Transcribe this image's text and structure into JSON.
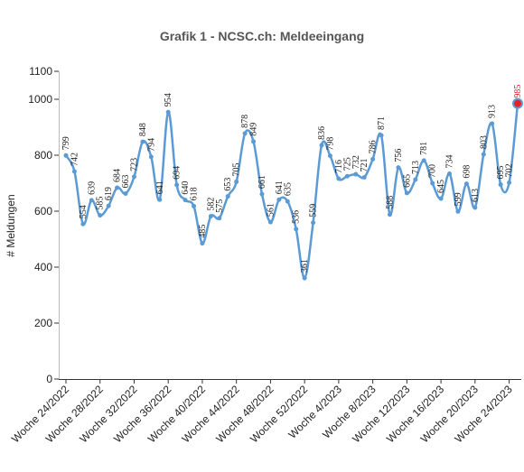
{
  "chart_data": {
    "type": "line",
    "title": "Grafik 1 - NCSC.ch: Meldeeingang",
    "ylabel": "# Meldungen",
    "xlabel": "",
    "ylim": [
      0,
      1100
    ],
    "yticks": [
      0,
      200,
      400,
      600,
      800,
      1000,
      1100
    ],
    "grid": false,
    "line_color": "#5b9bd5",
    "highlight_color": "#e8202a",
    "x_tick_labels": [
      "Woche 24/2022",
      "Woche 28/2022",
      "Woche 32/2022",
      "Woche 36/2022",
      "Woche 40/2022",
      "Woche 44/2022",
      "Woche 48/2022",
      "Woche 52/2022",
      "Woche 4/2023",
      "Woche 8/2023",
      "Woche 12/2023",
      "Woche 16/2023",
      "Woche 20/2023",
      "Woche 24/2023"
    ],
    "x_tick_every": 4,
    "series": [
      {
        "values": [
          799,
          742,
          554,
          639,
          585,
          619,
          684,
          663,
          723,
          848,
          794,
          641,
          954,
          694,
          640,
          618,
          485,
          582,
          575,
          653,
          705,
          878,
          849,
          661,
          561,
          641,
          635,
          536,
          361,
          559,
          836,
          798,
          716,
          725,
          732,
          721,
          786,
          871,
          588,
          756,
          665,
          713,
          781,
          700,
          645,
          734,
          599,
          698,
          613,
          803,
          913,
          695,
          702,
          985
        ]
      }
    ]
  }
}
